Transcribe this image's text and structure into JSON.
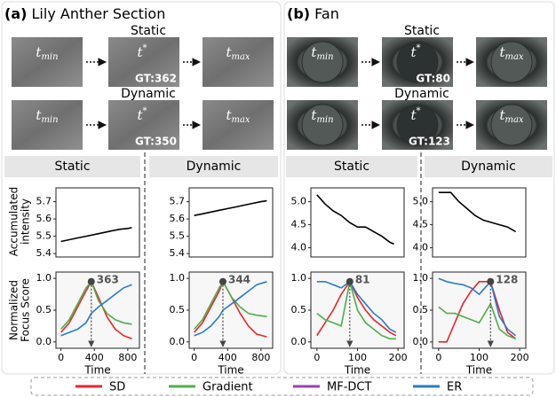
{
  "panels": [
    {
      "label": "(a)",
      "title": "Lily Anther Section",
      "rows": [
        {
          "name": "Static",
          "gt": "GT:362"
        },
        {
          "name": "Dynamic",
          "gt": "GT:350"
        }
      ]
    },
    {
      "label": "(b)",
      "title": "Fan",
      "rows": [
        {
          "name": "Static",
          "gt": "GT:80"
        },
        {
          "name": "Dynamic",
          "gt": "GT:123"
        }
      ]
    }
  ],
  "frame_labels": {
    "start": {
      "main": "t",
      "sub": "min"
    },
    "key": {
      "main": "t",
      "sup": "*"
    },
    "end": {
      "main": "t",
      "sub": "max"
    }
  },
  "row_axis_labels": {
    "intensity": [
      "Accumulated",
      "intensity"
    ],
    "focus": [
      "Normalized",
      "Focus Score"
    ]
  },
  "legend": [
    {
      "name": "SD",
      "color": "#e8262a"
    },
    {
      "name": "Gradient",
      "color": "#4daf4a"
    },
    {
      "name": "MF-DCT",
      "color": "#9b3fb5"
    },
    {
      "name": "ER",
      "color": "#2b7bc4"
    }
  ],
  "chart_data": [
    {
      "type": "line",
      "x": [
        0,
        100,
        200,
        300,
        400,
        500,
        600,
        700,
        800,
        850
      ],
      "values": [
        5.47,
        5.48,
        5.49,
        5.5,
        5.51,
        5.52,
        5.53,
        5.54,
        5.545,
        5.55
      ],
      "color": "#000000",
      "xlim": [
        -60,
        940
      ],
      "ylim": [
        5.38,
        5.78
      ],
      "yticks": [
        5.4,
        5.5,
        5.6,
        5.7
      ]
    },
    {
      "type": "line",
      "xlabel": "Time",
      "x": [
        0,
        100,
        200,
        300,
        363,
        450,
        550,
        650,
        750,
        850
      ],
      "series": [
        {
          "name": "SD",
          "color": "#e8262a",
          "values": [
            0.15,
            0.3,
            0.55,
            0.8,
            0.95,
            0.7,
            0.4,
            0.2,
            0.1,
            0.05
          ]
        },
        {
          "name": "Gradient",
          "color": "#4daf4a",
          "values": [
            0.2,
            0.35,
            0.6,
            0.85,
            0.95,
            0.65,
            0.45,
            0.35,
            0.3,
            0.28
          ]
        },
        {
          "name": "ER",
          "color": "#2b7bc4",
          "values": [
            0.1,
            0.15,
            0.2,
            0.3,
            0.45,
            0.55,
            0.65,
            0.75,
            0.85,
            0.9
          ]
        }
      ],
      "peak": {
        "x": 363,
        "y": 0.95
      },
      "xlim": [
        -60,
        940
      ],
      "xticks": [
        0,
        400,
        800
      ],
      "ylim": [
        -0.1,
        1.1
      ],
      "yticks": [
        {
          "value": 0,
          "label": "0.0"
        },
        {
          "value": 0.5,
          "label": "0.5"
        },
        {
          "value": 1,
          "label": "1.0"
        }
      ]
    },
    {
      "type": "line",
      "x": [
        0,
        100,
        200,
        300,
        400,
        500,
        600,
        700,
        800,
        870
      ],
      "values": [
        5.62,
        5.63,
        5.64,
        5.65,
        5.66,
        5.67,
        5.68,
        5.69,
        5.7,
        5.705
      ],
      "color": "#000000",
      "xlim": [
        -60,
        940
      ],
      "ylim": [
        5.38,
        5.78
      ],
      "yticks": [
        5.4,
        5.5,
        5.6,
        5.7
      ]
    },
    {
      "type": "line",
      "xlabel": "Time",
      "x": [
        0,
        100,
        200,
        300,
        344,
        450,
        550,
        650,
        750,
        870
      ],
      "series": [
        {
          "name": "SD",
          "color": "#e8262a",
          "values": [
            0.15,
            0.3,
            0.55,
            0.8,
            0.95,
            0.7,
            0.45,
            0.25,
            0.12,
            0.08
          ]
        },
        {
          "name": "Gradient",
          "color": "#4daf4a",
          "values": [
            0.2,
            0.35,
            0.6,
            0.85,
            0.95,
            0.7,
            0.55,
            0.45,
            0.42,
            0.4
          ]
        },
        {
          "name": "ER",
          "color": "#2b7bc4",
          "values": [
            0.1,
            0.15,
            0.25,
            0.4,
            0.5,
            0.6,
            0.7,
            0.8,
            0.9,
            0.95
          ]
        }
      ],
      "peak": {
        "x": 344,
        "y": 0.95
      },
      "xlim": [
        -60,
        940
      ],
      "xticks": [
        0,
        400,
        800
      ],
      "ylim": [
        -0.1,
        1.1
      ],
      "yticks": [
        {
          "value": 0,
          "label": "0.0"
        },
        {
          "value": 0.5,
          "label": "0.5"
        },
        {
          "value": 1,
          "label": "1.0"
        }
      ]
    },
    {
      "type": "line",
      "x": [
        0,
        20,
        40,
        60,
        80,
        100,
        120,
        140,
        160,
        180,
        190
      ],
      "values": [
        5.15,
        4.95,
        4.8,
        4.7,
        4.55,
        4.45,
        4.45,
        4.35,
        4.25,
        4.12,
        4.08
      ],
      "color": "#000000",
      "xlim": [
        -15,
        215
      ],
      "ylim": [
        3.8,
        5.3
      ],
      "yticks": [
        {
          "value": 4,
          "label": "4.0"
        },
        {
          "value": 4.5,
          "label": "4.5"
        },
        {
          "value": 5,
          "label": "5.0"
        }
      ]
    },
    {
      "type": "line",
      "xlabel": "Time",
      "x": [
        0,
        20,
        40,
        60,
        81,
        100,
        120,
        140,
        160,
        180,
        195
      ],
      "series": [
        {
          "name": "SD",
          "color": "#e8262a",
          "values": [
            0.1,
            0.3,
            0.5,
            0.75,
            0.95,
            0.7,
            0.5,
            0.35,
            0.25,
            0.15,
            0.1
          ]
        },
        {
          "name": "Gradient",
          "color": "#4daf4a",
          "values": [
            0.45,
            0.35,
            0.3,
            0.25,
            0.95,
            0.5,
            0.3,
            0.2,
            0.1,
            0.05,
            0.05
          ]
        },
        {
          "name": "ER",
          "color": "#2b7bc4",
          "values": [
            0.95,
            0.95,
            0.9,
            0.85,
            0.95,
            0.75,
            0.6,
            0.45,
            0.35,
            0.2,
            0.15
          ]
        }
      ],
      "peak": {
        "x": 81,
        "y": 0.95
      },
      "xlim": [
        -15,
        215
      ],
      "xticks": [
        0,
        100,
        200
      ],
      "ylim": [
        -0.1,
        1.1
      ],
      "yticks": [
        {
          "value": 0,
          "label": "0.0"
        },
        {
          "value": 0.5,
          "label": "0.5"
        },
        {
          "value": 1,
          "label": "1.0"
        }
      ]
    },
    {
      "type": "line",
      "x": [
        0,
        20,
        30,
        50,
        70,
        90,
        110,
        130,
        150,
        170,
        190
      ],
      "values": [
        5.2,
        5.2,
        5.2,
        5.0,
        4.85,
        4.7,
        4.6,
        4.55,
        4.5,
        4.45,
        4.35
      ],
      "color": "#000000",
      "xlim": [
        -15,
        215
      ],
      "ylim": [
        3.8,
        5.3
      ],
      "yticks": [
        {
          "value": 4,
          "label": "4.0"
        },
        {
          "value": 4.5,
          "label": "4.5"
        },
        {
          "value": 5,
          "label": "5.0"
        }
      ]
    },
    {
      "type": "line",
      "xlabel": "Time",
      "x": [
        0,
        20,
        40,
        60,
        80,
        100,
        128,
        150,
        170,
        190
      ],
      "series": [
        {
          "name": "SD",
          "color": "#e8262a",
          "values": [
            0,
            0,
            0.3,
            0.6,
            0.8,
            0.95,
            0.95,
            0.5,
            0.15,
            0.05
          ]
        },
        {
          "name": "Gradient",
          "color": "#4daf4a",
          "values": [
            0.55,
            0.45,
            0.45,
            0.4,
            0.35,
            0.3,
            0.6,
            0.2,
            0.1,
            0.05
          ]
        },
        {
          "name": "ER",
          "color": "#2b7bc4",
          "values": [
            1,
            0.95,
            0.92,
            0.9,
            0.85,
            0.75,
            0.95,
            0.4,
            0.2,
            0.1
          ]
        }
      ],
      "peak": {
        "x": 128,
        "y": 0.95
      },
      "xlim": [
        -15,
        215
      ],
      "xticks": [
        0,
        100,
        200
      ],
      "ylim": [
        -0.1,
        1.1
      ],
      "yticks": [
        {
          "value": 0,
          "label": "0.0"
        },
        {
          "value": 0.5,
          "label": "0.5"
        },
        {
          "value": 1,
          "label": "1.0"
        }
      ]
    }
  ]
}
